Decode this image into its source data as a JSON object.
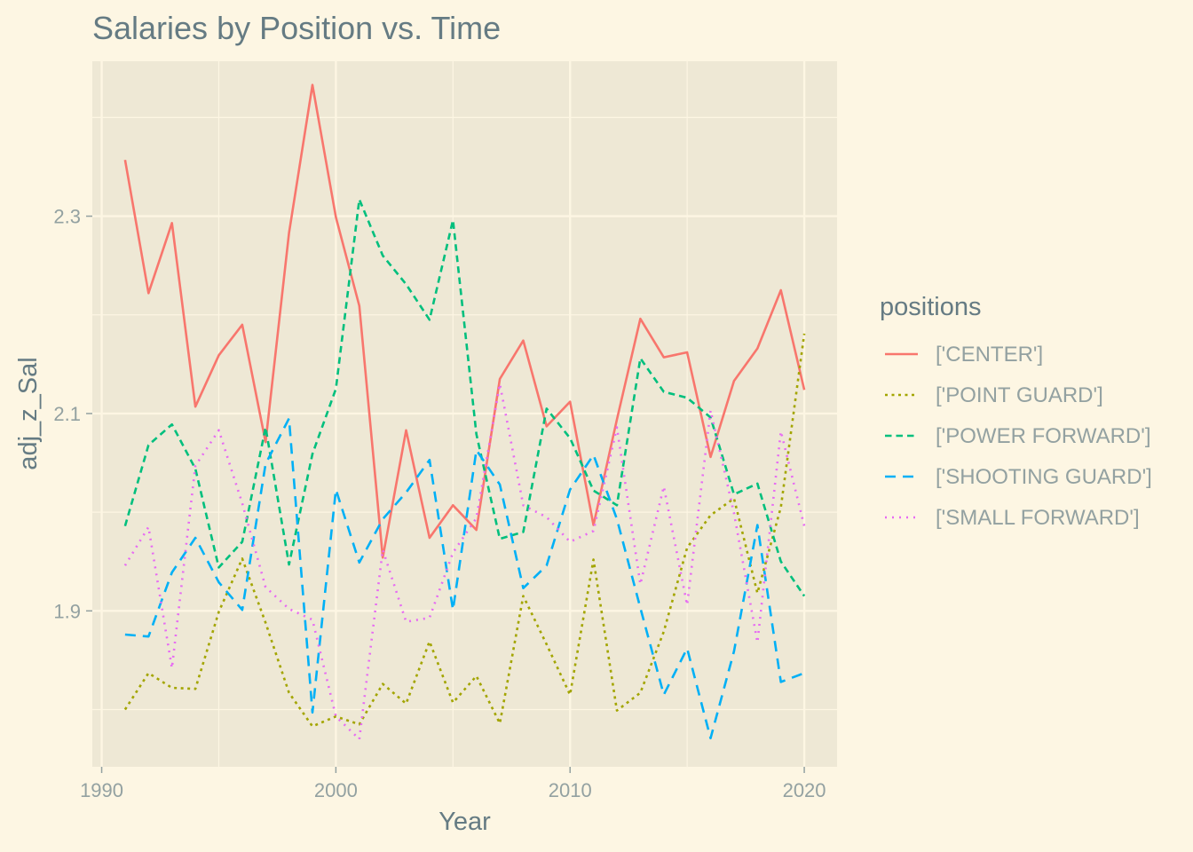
{
  "chart_data": {
    "type": "line",
    "title": "Salaries by Position vs. Time",
    "xlabel": "Year",
    "ylabel": "adj_z_Sal",
    "xlim": [
      1989.6,
      2021.4
    ],
    "ylim": [
      1.742,
      2.457
    ],
    "x_ticks": [
      1990,
      2000,
      2010,
      2020
    ],
    "y_ticks": [
      1.9,
      2.1,
      2.3
    ],
    "y_tick_labels": [
      "1.9",
      "2.1",
      "2.3"
    ],
    "grid": true,
    "legend": {
      "title": "positions",
      "placement": "right"
    },
    "panel_background": "#eee8d5",
    "x": [
      1991,
      1992,
      1993,
      1994,
      1995,
      1996,
      1997,
      1998,
      1999,
      2000,
      2001,
      2002,
      2003,
      2004,
      2005,
      2006,
      2007,
      2008,
      2009,
      2010,
      2011,
      2012,
      2013,
      2014,
      2015,
      2016,
      2017,
      2018,
      2019,
      2020
    ],
    "series": [
      {
        "name": "['CENTER']",
        "color": "#f8766d",
        "dash": "solid",
        "values": [
          2.357,
          2.222,
          2.293,
          2.107,
          2.159,
          2.19,
          2.071,
          2.283,
          2.433,
          2.299,
          2.209,
          1.954,
          2.083,
          1.974,
          2.007,
          1.982,
          2.135,
          2.174,
          2.087,
          2.112,
          1.987,
          2.094,
          2.196,
          2.157,
          2.162,
          2.056,
          2.133,
          2.166,
          2.225,
          2.124
        ]
      },
      {
        "name": "['POINT GUARD']",
        "color": "#a3a500",
        "dash": "dotted",
        "values": [
          1.8,
          1.837,
          1.822,
          1.821,
          1.899,
          1.953,
          1.888,
          1.817,
          1.783,
          1.793,
          1.785,
          1.826,
          1.806,
          1.869,
          1.807,
          1.834,
          1.786,
          1.915,
          1.866,
          1.815,
          1.952,
          1.799,
          1.817,
          1.879,
          1.964,
          1.997,
          2.014,
          1.918,
          2.005,
          2.181
        ]
      },
      {
        "name": "['POWER FORWARD']",
        "color": "#00bf7d",
        "dash": "dashed",
        "values": [
          1.986,
          2.068,
          2.089,
          2.044,
          1.944,
          1.97,
          2.086,
          1.947,
          2.059,
          2.125,
          2.317,
          2.26,
          2.231,
          2.195,
          2.296,
          2.079,
          1.973,
          1.98,
          2.105,
          2.075,
          2.022,
          2.007,
          2.156,
          2.122,
          2.116,
          2.096,
          2.018,
          2.029,
          1.95,
          1.915
        ]
      },
      {
        "name": "['SHOOTING GUARD']",
        "color": "#00b0f6",
        "dash": "longdash",
        "values": [
          1.876,
          1.874,
          1.939,
          1.974,
          1.929,
          1.901,
          2.049,
          2.095,
          1.797,
          2.023,
          1.949,
          1.993,
          2.02,
          2.053,
          1.901,
          2.063,
          2.028,
          1.923,
          1.946,
          2.023,
          2.058,
          1.993,
          1.903,
          1.815,
          1.862,
          1.771,
          1.859,
          1.987,
          1.828,
          1.837
        ]
      },
      {
        "name": "['SMALL FORWARD']",
        "color": "#e76bf3",
        "dash": "dotted2",
        "values": [
          1.946,
          1.985,
          1.842,
          2.047,
          2.083,
          2.009,
          1.924,
          1.902,
          1.891,
          1.793,
          1.77,
          1.962,
          1.889,
          1.893,
          1.959,
          1.994,
          2.13,
          2.007,
          1.995,
          1.97,
          1.981,
          2.086,
          1.927,
          2.026,
          1.906,
          2.103,
          1.999,
          1.868,
          2.082,
          1.986
        ]
      }
    ]
  }
}
